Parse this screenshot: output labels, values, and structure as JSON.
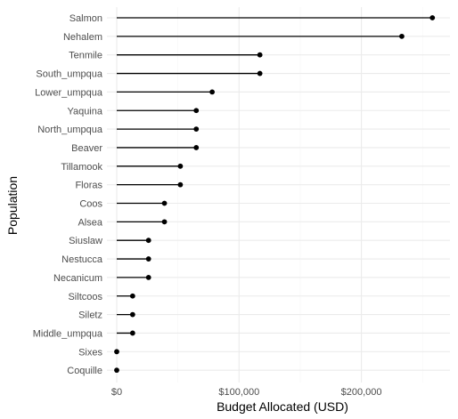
{
  "chart_data": {
    "type": "lollipop",
    "orientation": "horizontal",
    "title": "",
    "xlabel": "Budget Allocated (USD)",
    "ylabel": "Population",
    "xlim": [
      0,
      260000
    ],
    "x_ticks": [
      0,
      100000,
      200000
    ],
    "x_tick_labels": [
      "$0",
      "$100,000",
      "$200,000"
    ],
    "grid": true,
    "theme": "minimal",
    "colors": {
      "marker": "#000000",
      "segment": "#000000",
      "grid": "#ebebeb",
      "tick_text": "#4d4d4d"
    },
    "categories": [
      "Salmon",
      "Nehalem",
      "Tenmile",
      "South_umpqua",
      "Lower_umpqua",
      "Yaquina",
      "North_umpqua",
      "Beaver",
      "Tillamook",
      "Floras",
      "Coos",
      "Alsea",
      "Siuslaw",
      "Nestucca",
      "Necanicum",
      "Siltcoos",
      "Siletz",
      "Middle_umpqua",
      "Sixes",
      "Coquille"
    ],
    "values": [
      258000,
      233000,
      117000,
      117000,
      78000,
      65000,
      65000,
      65000,
      52000,
      52000,
      39000,
      39000,
      26000,
      26000,
      26000,
      13000,
      13000,
      13000,
      0,
      0
    ]
  }
}
